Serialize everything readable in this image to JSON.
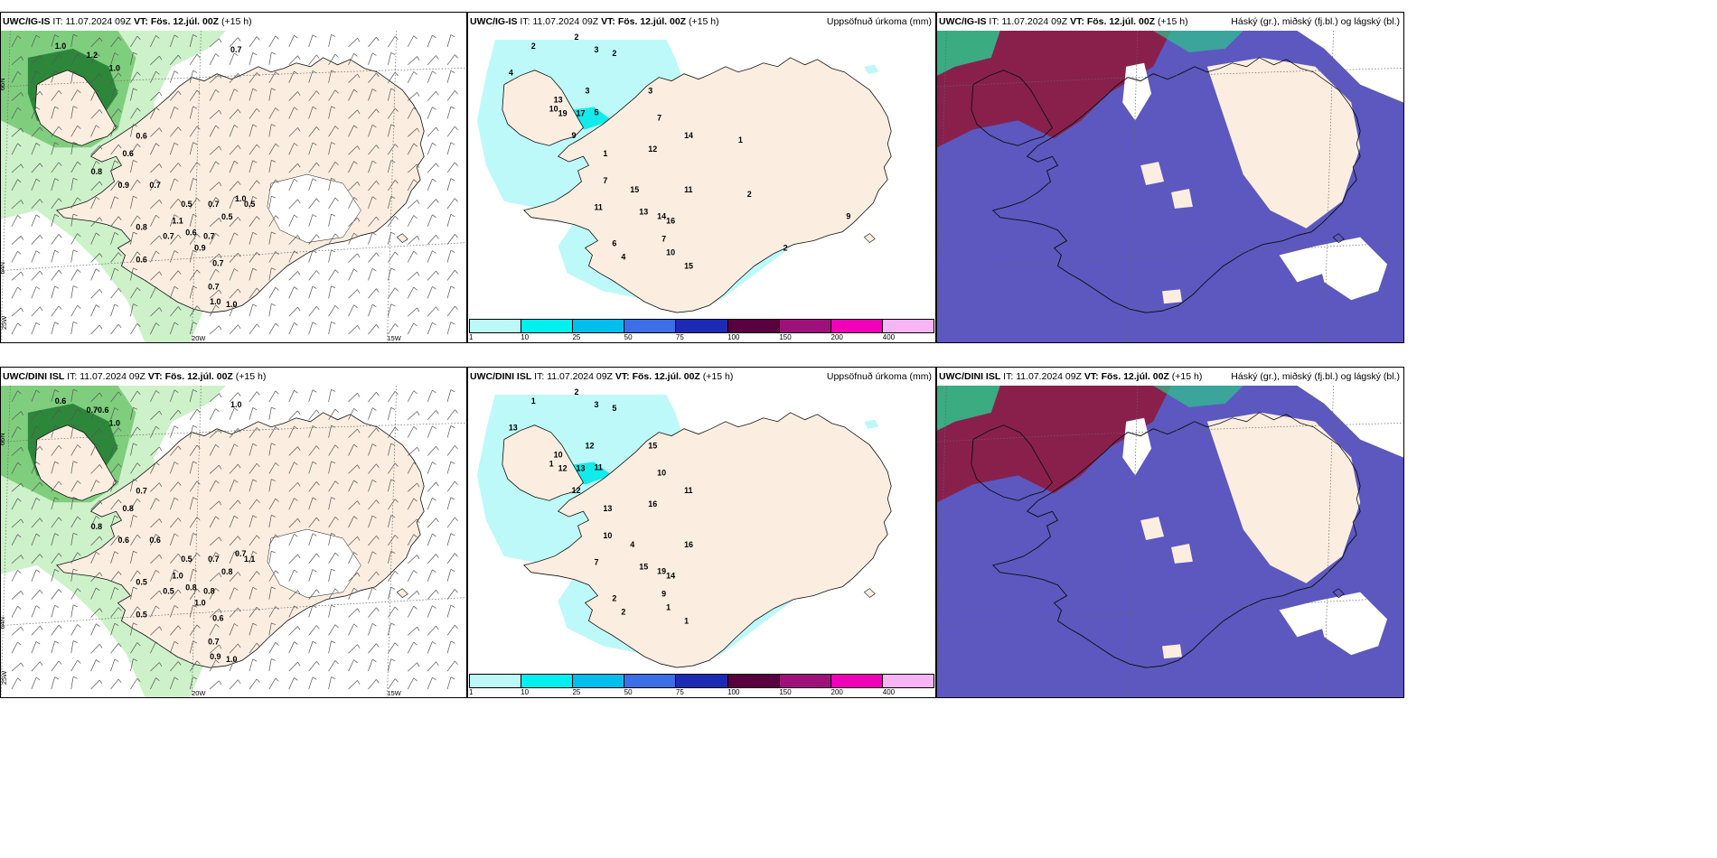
{
  "colors": {
    "land": "#fbeee0",
    "precip_light": "#bdf8f8",
    "precip_mid": "#00e8e8",
    "cloud_high": "#8b1e46",
    "cloud_mid": "#5c58c0",
    "cloud_low_green": "#2ec48c",
    "wind_green_light": "#c8efc3",
    "wind_green_mid": "#6cc66c",
    "wind_green_dark": "#1f7a2e"
  },
  "rows": [
    {
      "model": "UWC/IG-IS",
      "it_label": "IT:",
      "it_value": "11.07.2024 09Z",
      "vt_label": "VT: Fös. 12.júl. 00Z",
      "lead": "(+15 h)"
    },
    {
      "model": "UWC/DINI ISL",
      "it_label": "IT:",
      "it_value": "11.07.2024 09Z",
      "vt_label": "VT: Fös. 12.júl. 00Z",
      "lead": "(+15 h)"
    }
  ],
  "precip_title": "Uppsöfnuð úrkoma (mm)",
  "cloud_title": "Háský (gr.), miðský (fj.bl.) og lágský (bl.)",
  "colorbar": {
    "ticks": [
      "1",
      "10",
      "25",
      "50",
      "75",
      "100",
      "150",
      "200",
      "400"
    ],
    "colors": [
      "#bdf8f8",
      "#00f0f0",
      "#00bfef",
      "#3a6fe8",
      "#1c2bb5",
      "#5a0040",
      "#a0107a",
      "#f000b8",
      "#f8b4f4"
    ]
  },
  "grid_labels": {
    "lat66": "66N",
    "lat64": "64N",
    "lon25": "25W",
    "lon20": "20W",
    "lon15": "15W"
  },
  "wind_top": [
    "1.0",
    "1.2",
    "1.0",
    "0.7",
    "0.6",
    "0.6",
    "0.8",
    "0.9",
    "0.7",
    "0.5",
    "0.7",
    "0.5",
    "1.0",
    "0.5",
    "0.8",
    "1.1",
    "0.7",
    "0.6",
    "0.9",
    "0.7",
    "0.6",
    "0.7",
    "0.7",
    "1.0",
    "1.0"
  ],
  "wind_bottom": [
    "0.6",
    "0.70.6",
    "1.0",
    "1.0",
    "0.8",
    "0.7",
    "0.8",
    "0.6",
    "0.6",
    "0.5",
    "0.7",
    "1.1",
    "0.7",
    "0.8",
    "0.5",
    "1.0",
    "0.5",
    "0.8",
    "1.0",
    "0.8",
    "0.5",
    "0.6",
    "0.7",
    "0.9",
    "1.0"
  ],
  "precip_top": [
    "2",
    "2",
    "3",
    "2",
    "4",
    "3",
    "13",
    "10",
    "19",
    "17",
    "3",
    "7",
    "5",
    "9",
    "1",
    "12",
    "14",
    "7",
    "11",
    "15",
    "13",
    "14",
    "16",
    "11",
    "7",
    "6",
    "4",
    "10",
    "15",
    "1",
    "2",
    "9",
    "2"
  ],
  "precip_bottom": [
    "1",
    "2",
    "3",
    "5",
    "13",
    "12",
    "10",
    "1",
    "12",
    "13",
    "15",
    "10",
    "11",
    "12",
    "13",
    "16",
    "11",
    "10",
    "7",
    "4",
    "15",
    "19",
    "14",
    "16",
    "9",
    "2",
    "2",
    "1",
    "1"
  ]
}
